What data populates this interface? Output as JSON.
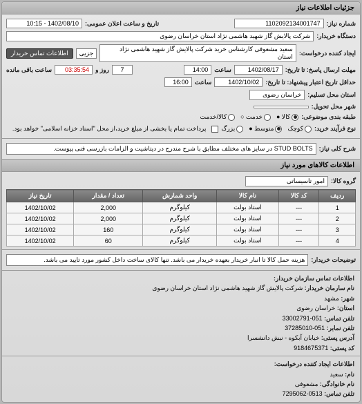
{
  "header": {
    "title": "جزئیات اطلاعات نیاز"
  },
  "top": {
    "need_no_label": "شماره نیاز:",
    "need_no": "1102092134001747",
    "pub_datetime_label": "تاریخ و ساعت اعلان عمومی:",
    "pub_datetime": "1402/08/10 - 10:15",
    "buyer_org_label": "دستگاه خریدار:",
    "buyer_org": "شرکت پالایش گاز شهید هاشمی نژاد   استان خراسان رضوی",
    "requester_label": "ایجاد کننده درخواست:",
    "requester": "سعید مشعوفی کارشناس خرید شرکت پالایش گاز شهید هاشمی نژاد   استان",
    "partial": "جزیی",
    "contact_btn": "اطلاعات تماس خریدار",
    "deadline_send_label": "مهلت ارسال پاسخ: تا تاریخ:",
    "deadline_send_date": "1402/08/17",
    "deadline_send_time_label": "ساعت",
    "deadline_send_time": "14:00",
    "days_label": "روز و",
    "days": "7",
    "remain_label": "ساعت باقی مانده",
    "remain": "03:35:54",
    "valid_to_label": "حداقل تاریخ اعتبار پیشنهاد: تا تاریخ:",
    "valid_to_date": "1402/10/02",
    "valid_to_time_label": "ساعت",
    "valid_to_time": "16:00",
    "province_label": "استان محل تسلیم:",
    "province": "خراسان رضوی",
    "city_label": "شهر محل تحویل:",
    "budget_label": "طبقه بندی موضوعی:",
    "budget_opts": {
      "goods": "کالا ●",
      "service": "خدمت ○",
      "both": "کالا/خدمت"
    },
    "process_label": "نوع فرآیند خرید:",
    "process_opts": {
      "small": "کوچک",
      "medium": "متوسط ●",
      "large": "بزرگ"
    },
    "process_note": "پرداخت تمام یا بخشی از مبلغ خرید،از محل \"اسناد خزانه اسلامی\" خواهد بود.",
    "checkbox_off": "☐"
  },
  "need": {
    "title_label": "شرح کلی نیاز:",
    "title": "STUD BOLTS در سایز های مختلف مطابق با شرح مندرج در دیتاشیت و الزامات بازرسی فنی پیوست."
  },
  "goods": {
    "section": "اطلاعات کالاهای مورد نیاز",
    "group_label": "گروه کالا:",
    "group": "امور تاسیساتی",
    "columns": [
      "ردیف",
      "کد کالا",
      "نام کالا",
      "واحد شمارش",
      "تعداد / مقدار",
      "تاریخ نیاز"
    ],
    "rows": [
      [
        "1",
        "---",
        "استاد بولت",
        "کیلوگرم",
        "2,000",
        "1402/10/02"
      ],
      [
        "2",
        "---",
        "استاد بولت",
        "کیلوگرم",
        "2,000",
        "1402/10/02"
      ],
      [
        "3",
        "---",
        "استاد بولت",
        "کیلوگرم",
        "160",
        "1402/10/02"
      ],
      [
        "4",
        "---",
        "استاد بولت",
        "کیلوگرم",
        "60",
        "1402/10/02"
      ]
    ]
  },
  "buyer_note": {
    "label": "توضیحات خریدار:",
    "text": "هزینه حمل کالا تا انبار خریدار بعهده خریدار می باشد. تنها کالای ساخت داخل کشور مورد تایید می باشد."
  },
  "contact": {
    "section": "اطلاعات تماس سازمان خریدار:",
    "org_name_label": "نام سارمان خریدار:",
    "org_name": "شرکت پالایش گاز شهید هاشمی نژاد استان خراسان رضوی",
    "city_label": "شهر:",
    "city": "مشهد",
    "province_label": "استان:",
    "province": "خراسان رضوی",
    "tel_label": "تلفن تماس:",
    "tel": "051-33002791",
    "fax_label": "تلفن نمابر:",
    "fax": "051-37285010",
    "postal_label": "آدرس پستی:",
    "postal": "خیابان آبکوه - نبش دانشسرا",
    "postcode_label": "کد پستی:",
    "postcode": "9184675371"
  },
  "creator": {
    "section": "اطلاعات ایجاد کننده درخواست:",
    "first_label": "نام:",
    "first": "سعید",
    "last_label": "نام خانوادگی:",
    "last": "مشعوفی",
    "tel_label": "تلفن تماس:",
    "tel": "0513-7295062"
  }
}
